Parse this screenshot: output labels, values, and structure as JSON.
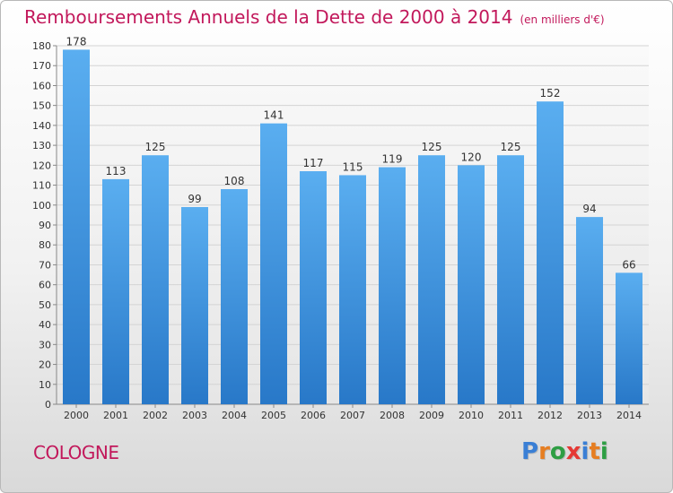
{
  "chart_data": {
    "type": "bar",
    "title": "Remboursements Annuels de la Dette de 2000 à 2014",
    "subtitle": "(en milliers d'€)",
    "categories": [
      "2000",
      "2001",
      "2002",
      "2003",
      "2004",
      "2005",
      "2006",
      "2007",
      "2008",
      "2009",
      "2010",
      "2011",
      "2012",
      "2013",
      "2014"
    ],
    "values": [
      178,
      113,
      125,
      99,
      108,
      141,
      117,
      115,
      119,
      125,
      120,
      125,
      152,
      94,
      66
    ],
    "ylim": [
      0,
      180
    ],
    "yticks": [
      0,
      10,
      20,
      30,
      40,
      50,
      60,
      70,
      80,
      90,
      100,
      110,
      120,
      130,
      140,
      150,
      160,
      170,
      180
    ],
    "grid": true,
    "bar_color": "#4a9ee0",
    "title_color": "#c2185b"
  },
  "footer": {
    "city": "COLOGNE",
    "logo_letters": [
      "P",
      "r",
      "o",
      "x",
      "i",
      "t",
      "i"
    ],
    "logo_colors": [
      "#3a7fd5",
      "#e67e22",
      "#2e9e44",
      "#e53935",
      "#3a7fd5",
      "#e67e22",
      "#2e9e44"
    ]
  }
}
